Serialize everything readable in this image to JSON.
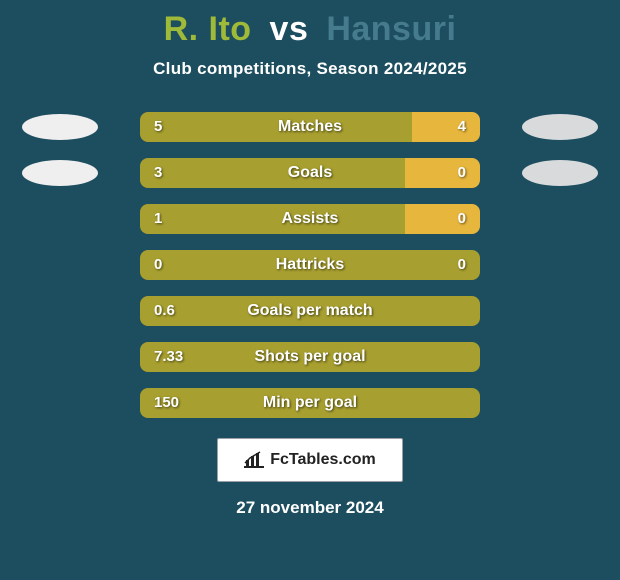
{
  "background_color": "#1d4e5f",
  "title_color_p1": "#9fb939",
  "title_color_vs": "#ffffff",
  "title_color_p2": "#457b8d",
  "player1_name": "R. Ito",
  "vs_text": "vs",
  "player2_name": "Hansuri",
  "subtitle": "Club competitions, Season 2024/2025",
  "avatar_color_p1": "#efefef",
  "avatar_color_p2": "#d9dadc",
  "bar": {
    "track_color": "#0f3a49",
    "fill_color_p1": "#a79f2f",
    "fill_color_p2": "#e7b63d"
  },
  "rows": [
    {
      "label": "Matches",
      "v1": "5",
      "v2": "4",
      "w1": 80,
      "w2": 20,
      "avatars": true
    },
    {
      "label": "Goals",
      "v1": "3",
      "v2": "0",
      "w1": 78,
      "w2": 22,
      "avatars": true
    },
    {
      "label": "Assists",
      "v1": "1",
      "v2": "0",
      "w1": 78,
      "w2": 22,
      "avatars": false
    },
    {
      "label": "Hattricks",
      "v1": "0",
      "v2": "0",
      "w1": 100,
      "w2": 0,
      "avatars": false
    },
    {
      "label": "Goals per match",
      "v1": "0.6",
      "v2": "",
      "w1": 100,
      "w2": 0,
      "avatars": false
    },
    {
      "label": "Shots per goal",
      "v1": "7.33",
      "v2": "",
      "w1": 100,
      "w2": 0,
      "avatars": false
    },
    {
      "label": "Min per goal",
      "v1": "150",
      "v2": "",
      "w1": 100,
      "w2": 0,
      "avatars": false
    }
  ],
  "badge_text": "FcTables.com",
  "date_text": "27 november 2024"
}
